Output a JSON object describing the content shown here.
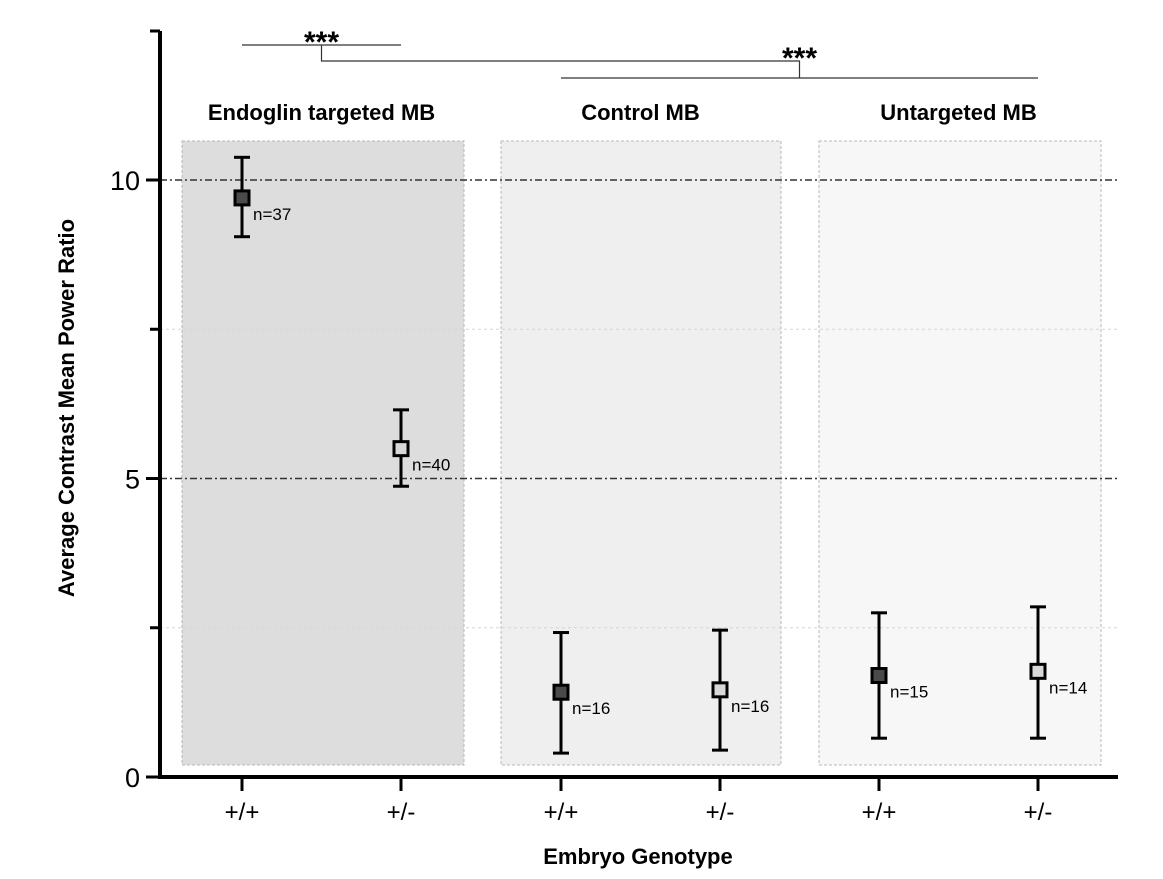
{
  "chart_data": {
    "type": "scatter",
    "ylabel": "Average Contrast Mean Power Ratio",
    "xlabel": "Embryo Genotype",
    "ylim": [
      0,
      12.5
    ],
    "y_ticks": [
      0,
      5,
      10
    ],
    "y_minor_ticks": [
      2.5,
      7.5
    ],
    "reference_lines": [
      5,
      10
    ],
    "groups": [
      {
        "label": "Endoglin targeted MB",
        "shade": "#dddddd"
      },
      {
        "label": "Control MB",
        "shade": "#efefef"
      },
      {
        "label": "Untargeted MB",
        "shade": "#f7f7f7"
      }
    ],
    "categories": [
      "+/+",
      "+/-",
      "+/+",
      "+/-",
      "+/+",
      "+/-"
    ],
    "points": [
      {
        "group": 0,
        "genotype": "+/+",
        "mean": 9.7,
        "low": 9.05,
        "high": 10.38,
        "n": "n=37",
        "marker": "#4a4a4a"
      },
      {
        "group": 0,
        "genotype": "+/-",
        "mean": 5.5,
        "low": 4.87,
        "high": 6.15,
        "n": "n=40",
        "marker": "#d8d8d8"
      },
      {
        "group": 1,
        "genotype": "+/+",
        "mean": 1.42,
        "low": 0.4,
        "high": 2.42,
        "n": "n=16",
        "marker": "#4a4a4a"
      },
      {
        "group": 1,
        "genotype": "+/-",
        "mean": 1.46,
        "low": 0.45,
        "high": 2.46,
        "n": "n=16",
        "marker": "#d8d8d8"
      },
      {
        "group": 2,
        "genotype": "+/+",
        "mean": 1.7,
        "low": 0.65,
        "high": 2.75,
        "n": "n=15",
        "marker": "#4a4a4a"
      },
      {
        "group": 2,
        "genotype": "+/-",
        "mean": 1.77,
        "low": 0.65,
        "high": 2.85,
        "n": "n=14",
        "marker": "#d8d8d8"
      }
    ],
    "significance": [
      {
        "label": "***",
        "left_category": 0,
        "right_category": 1,
        "level": 1
      },
      {
        "label": "***",
        "left_group": 0,
        "right_groups": [
          1,
          2
        ],
        "level": 2
      }
    ]
  }
}
